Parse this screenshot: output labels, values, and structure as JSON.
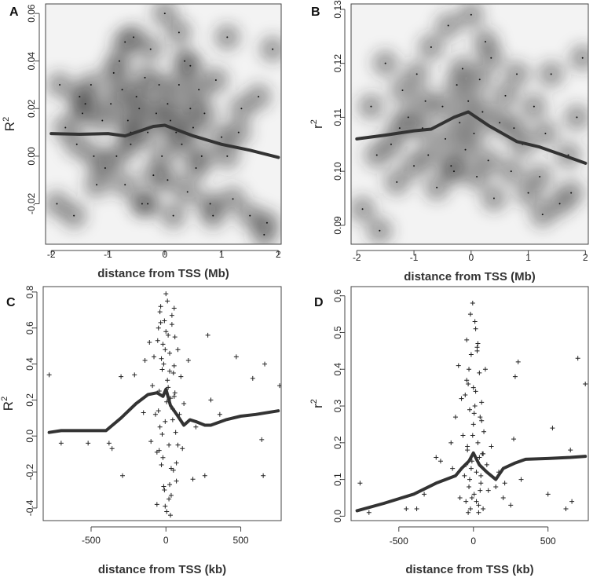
{
  "chart_data": [
    {
      "panel": "A",
      "type": "scatter",
      "style": "smoothed-density",
      "xlabel": "distance from TSS (Mb)",
      "ylabel": "R",
      "ylabel_sup": "2",
      "xlim": [
        -2.1,
        2.05
      ],
      "ylim": [
        -0.037,
        0.064
      ],
      "xticks": [
        -2,
        -1,
        0,
        1,
        2
      ],
      "xtick_labels": [
        "-2",
        "-1",
        "0",
        "1",
        "2"
      ],
      "yticks": [
        -0.02,
        0.0,
        0.02,
        0.04,
        0.06
      ],
      "ytick_labels": [
        "-0.02",
        "0.00",
        "0.02",
        "0.04",
        "0.06"
      ],
      "smooth": {
        "x": [
          -2.0,
          -1.5,
          -1.0,
          -0.7,
          -0.2,
          0.0,
          0.5,
          1.0,
          1.5,
          2.0
        ],
        "y": [
          0.0095,
          0.0092,
          0.0095,
          0.0085,
          0.0125,
          0.013,
          0.0085,
          0.005,
          0.0025,
          -0.0005
        ]
      },
      "points": {
        "x": [
          -1.9,
          -1.75,
          -1.6,
          -1.5,
          -1.45,
          -1.3,
          -1.25,
          -1.1,
          -1.05,
          -0.95,
          -0.9,
          -0.85,
          -0.8,
          -0.75,
          -0.7,
          -0.65,
          -0.6,
          -0.55,
          -0.5,
          -0.45,
          -0.4,
          -0.35,
          -0.3,
          -0.25,
          -0.2,
          -0.15,
          -0.1,
          -0.05,
          0.0,
          0.05,
          0.1,
          0.15,
          0.2,
          0.25,
          0.3,
          0.35,
          0.4,
          0.45,
          0.5,
          0.55,
          0.6,
          0.65,
          0.7,
          0.8,
          0.9,
          1.0,
          1.1,
          1.2,
          1.35,
          1.5,
          1.65,
          1.75,
          1.9,
          -1.85,
          -1.55,
          -1.2,
          -0.7,
          -0.3,
          0.05,
          0.45,
          0.85,
          1.3,
          1.8,
          -1.4,
          -0.6,
          0.25,
          1.1
        ],
        "y": [
          -0.02,
          0.012,
          -0.025,
          0.025,
          0.018,
          0.03,
          0.0,
          0.015,
          -0.005,
          0.022,
          0.035,
          0.0,
          0.04,
          0.028,
          -0.012,
          0.015,
          0.005,
          0.05,
          0.025,
          0.02,
          -0.02,
          0.033,
          0.01,
          0.045,
          -0.008,
          0.018,
          0.03,
          0.0,
          0.06,
          0.022,
          0.015,
          -0.025,
          0.01,
          0.03,
          0.005,
          0.04,
          -0.015,
          0.02,
          0.012,
          -0.005,
          0.028,
          0.0,
          0.018,
          -0.02,
          0.032,
          0.008,
          0.05,
          -0.018,
          0.02,
          -0.025,
          0.025,
          -0.033,
          0.045,
          0.03,
          0.005,
          -0.012,
          0.048,
          -0.02,
          -0.01,
          0.038,
          -0.025,
          0.01,
          -0.028,
          0.022,
          0.01,
          0.052,
          0.0
        ],
        "symbol": "dot"
      }
    },
    {
      "panel": "B",
      "type": "scatter",
      "style": "smoothed-density",
      "xlabel": "distance from TSS (Mb)",
      "ylabel": "r",
      "ylabel_sup": "2",
      "xlim": [
        -2.1,
        2.05
      ],
      "ylim": [
        0.0865,
        0.131
      ],
      "xticks": [
        -2,
        -1,
        0,
        1,
        2
      ],
      "xtick_labels": [
        "-2",
        "-1",
        "0",
        "1",
        "2"
      ],
      "yticks": [
        0.09,
        0.1,
        0.11,
        0.12,
        0.13
      ],
      "ytick_labels": [
        "0.09",
        "0.10",
        "0.11",
        "0.12",
        "0.13"
      ],
      "smooth": {
        "x": [
          -2.0,
          -1.5,
          -1.0,
          -0.7,
          -0.3,
          -0.05,
          0.3,
          0.8,
          1.2,
          1.6,
          2.0
        ],
        "y": [
          0.106,
          0.1067,
          0.1075,
          0.1078,
          0.11,
          0.111,
          0.1085,
          0.1055,
          0.1045,
          0.103,
          0.1015
        ]
      },
      "points": {
        "x": [
          -1.9,
          -1.75,
          -1.6,
          -1.5,
          -1.4,
          -1.3,
          -1.2,
          -1.1,
          -1.0,
          -0.95,
          -0.85,
          -0.75,
          -0.7,
          -0.6,
          -0.5,
          -0.45,
          -0.4,
          -0.3,
          -0.25,
          -0.2,
          -0.15,
          -0.1,
          -0.05,
          0.0,
          0.05,
          0.1,
          0.15,
          0.2,
          0.3,
          0.35,
          0.4,
          0.5,
          0.6,
          0.7,
          0.8,
          0.9,
          1.0,
          1.1,
          1.2,
          1.3,
          1.4,
          1.55,
          1.7,
          1.85,
          1.95,
          -1.65,
          -1.25,
          -0.8,
          -0.35,
          0.25,
          0.75,
          1.25,
          1.75
        ],
        "y": [
          0.093,
          0.112,
          0.089,
          0.12,
          0.105,
          0.098,
          0.115,
          0.11,
          0.101,
          0.118,
          0.108,
          0.103,
          0.123,
          0.097,
          0.112,
          0.106,
          0.127,
          0.1,
          0.116,
          0.109,
          0.119,
          0.104,
          0.113,
          0.129,
          0.107,
          0.099,
          0.117,
          0.111,
          0.102,
          0.121,
          0.095,
          0.109,
          0.114,
          0.1,
          0.118,
          0.105,
          0.096,
          0.112,
          0.099,
          0.107,
          0.118,
          0.094,
          0.103,
          0.11,
          0.121,
          0.103,
          0.108,
          0.113,
          0.101,
          0.124,
          0.108,
          0.092,
          0.096
        ],
        "symbol": "dot"
      }
    },
    {
      "panel": "C",
      "type": "scatter",
      "xlabel": "distance from TSS (kb)",
      "ylabel": "R",
      "ylabel_sup": "2",
      "xlim": [
        -820,
        770
      ],
      "ylim": [
        -0.47,
        0.83
      ],
      "xticks": [
        -500,
        0,
        500
      ],
      "xtick_labels": [
        "-500",
        "0",
        "500"
      ],
      "yticks": [
        -0.4,
        -0.2,
        0.0,
        0.2,
        0.4,
        0.6,
        0.8
      ],
      "ytick_labels": [
        "-0.4",
        "-0.2",
        "0.0",
        "0.2",
        "0.4",
        "0.6",
        "0.8"
      ],
      "smooth": {
        "x": [
          -780,
          -700,
          -600,
          -500,
          -400,
          -300,
          -200,
          -120,
          -60,
          -20,
          0,
          30,
          80,
          120,
          160,
          200,
          260,
          300,
          400,
          500,
          600,
          750
        ],
        "y": [
          0.02,
          0.03,
          0.03,
          0.03,
          0.03,
          0.1,
          0.18,
          0.23,
          0.24,
          0.22,
          0.26,
          0.17,
          0.11,
          0.06,
          0.09,
          0.08,
          0.06,
          0.06,
          0.09,
          0.11,
          0.12,
          0.14
        ]
      },
      "points": {
        "x": [
          -780,
          -700,
          -520,
          -380,
          -360,
          -300,
          -290,
          -210,
          -150,
          -140,
          -110,
          -100,
          -90,
          -80,
          -70,
          -60,
          -50,
          -45,
          -40,
          -35,
          -30,
          -25,
          -20,
          -15,
          -10,
          -5,
          0,
          5,
          10,
          15,
          20,
          25,
          30,
          35,
          40,
          45,
          50,
          55,
          60,
          65,
          70,
          80,
          90,
          100,
          110,
          120,
          150,
          180,
          200,
          260,
          280,
          300,
          360,
          470,
          580,
          640,
          650,
          660,
          760,
          -60,
          -40,
          -20,
          0,
          20,
          40,
          60,
          80,
          -50,
          -30,
          -10,
          10,
          30,
          50,
          70,
          -55,
          -25,
          -5,
          15,
          35,
          55,
          -45,
          -15,
          5,
          25,
          45,
          -35,
          -5,
          25,
          55
        ],
        "y": [
          0.34,
          -0.04,
          -0.04,
          -0.04,
          -0.07,
          0.33,
          -0.22,
          0.34,
          0.13,
          0.42,
          0.52,
          -0.03,
          0.28,
          0.44,
          0.12,
          -0.09,
          0.6,
          0.25,
          0.05,
          0.72,
          -0.16,
          0.37,
          0.51,
          -0.28,
          0.64,
          0.08,
          0.79,
          -0.42,
          0.31,
          0.56,
          -0.05,
          0.46,
          0.21,
          -0.33,
          0.67,
          0.15,
          -0.19,
          0.39,
          0.55,
          0.02,
          -0.25,
          0.48,
          0.12,
          0.33,
          -0.07,
          0.18,
          0.42,
          -0.24,
          0.05,
          -0.22,
          0.56,
          0.2,
          0.12,
          0.44,
          0.32,
          -0.02,
          -0.22,
          0.4,
          0.28,
          -0.38,
          0.69,
          -0.12,
          0.58,
          -0.35,
          0.62,
          0.24,
          -0.05,
          0.14,
          0.43,
          -0.3,
          0.75,
          -0.44,
          0.35,
          -0.15,
          0.53,
          0.01,
          0.48,
          0.27,
          -0.18,
          0.71,
          -0.08,
          0.4,
          0.19,
          -0.27,
          0.09,
          0.63,
          -0.39,
          0.36,
          0.22
        ],
        "symbol": "plus"
      }
    },
    {
      "panel": "D",
      "type": "scatter",
      "xlabel": "distance from TSS (kb)",
      "ylabel": "r",
      "ylabel_sup": "2",
      "xlim": [
        -820,
        770
      ],
      "ylim": [
        -0.012,
        0.625
      ],
      "xticks": [
        -500,
        0,
        500
      ],
      "xtick_labels": [
        "-500",
        "0",
        "500"
      ],
      "yticks": [
        0.0,
        0.1,
        0.2,
        0.3,
        0.4,
        0.5,
        0.6
      ],
      "ytick_labels": [
        "0.0",
        "0.1",
        "0.2",
        "0.3",
        "0.4",
        "0.5",
        "0.6"
      ],
      "smooth": {
        "x": [
          -780,
          -600,
          -400,
          -250,
          -120,
          -80,
          -30,
          0,
          40,
          90,
          150,
          200,
          280,
          350,
          500,
          650,
          750
        ],
        "y": [
          0.015,
          0.035,
          0.06,
          0.09,
          0.11,
          0.13,
          0.15,
          0.172,
          0.14,
          0.12,
          0.1,
          0.13,
          0.145,
          0.155,
          0.157,
          0.16,
          0.163
        ]
      },
      "points": {
        "x": [
          -760,
          -700,
          -450,
          -380,
          -330,
          -250,
          -220,
          -150,
          -140,
          -120,
          -100,
          -90,
          -80,
          -70,
          -60,
          -50,
          -45,
          -40,
          -35,
          -30,
          -25,
          -20,
          -15,
          -10,
          -5,
          0,
          5,
          10,
          15,
          20,
          25,
          30,
          35,
          40,
          45,
          50,
          55,
          60,
          65,
          70,
          80,
          90,
          100,
          120,
          150,
          170,
          200,
          210,
          250,
          270,
          280,
          300,
          320,
          500,
          530,
          620,
          650,
          660,
          700,
          750,
          -55,
          -35,
          -15,
          5,
          25,
          45,
          65,
          -45,
          -25,
          -5,
          15,
          35,
          55,
          -50,
          -30,
          -10,
          10,
          30,
          50,
          -40,
          -20,
          0,
          20,
          40
        ],
        "y": [
          0.09,
          0.01,
          0.02,
          0.02,
          0.06,
          0.16,
          0.15,
          0.2,
          0.13,
          0.27,
          0.41,
          0.05,
          0.32,
          0.22,
          0.11,
          0.04,
          0.48,
          0.18,
          0.36,
          0.08,
          0.29,
          0.02,
          0.44,
          0.15,
          0.58,
          0.25,
          0.06,
          0.53,
          0.34,
          0.12,
          0.46,
          0.2,
          0.03,
          0.39,
          0.27,
          0.09,
          0.31,
          0.17,
          0.02,
          0.23,
          0.4,
          0.14,
          0.07,
          0.19,
          0.08,
          0.12,
          0.05,
          0.09,
          0.03,
          0.21,
          0.38,
          0.42,
          0.1,
          0.06,
          0.24,
          0.02,
          0.18,
          0.04,
          0.43,
          0.36,
          0.33,
          0.01,
          0.13,
          0.28,
          0.45,
          0.07,
          0.17,
          0.37,
          0.1,
          0.22,
          0.51,
          0.01,
          0.26,
          0.14,
          0.4,
          0.05,
          0.3,
          0.47,
          0.11,
          0.19,
          0.55,
          0.35,
          0.04,
          0.16
        ],
        "symbol": "plus"
      }
    }
  ]
}
